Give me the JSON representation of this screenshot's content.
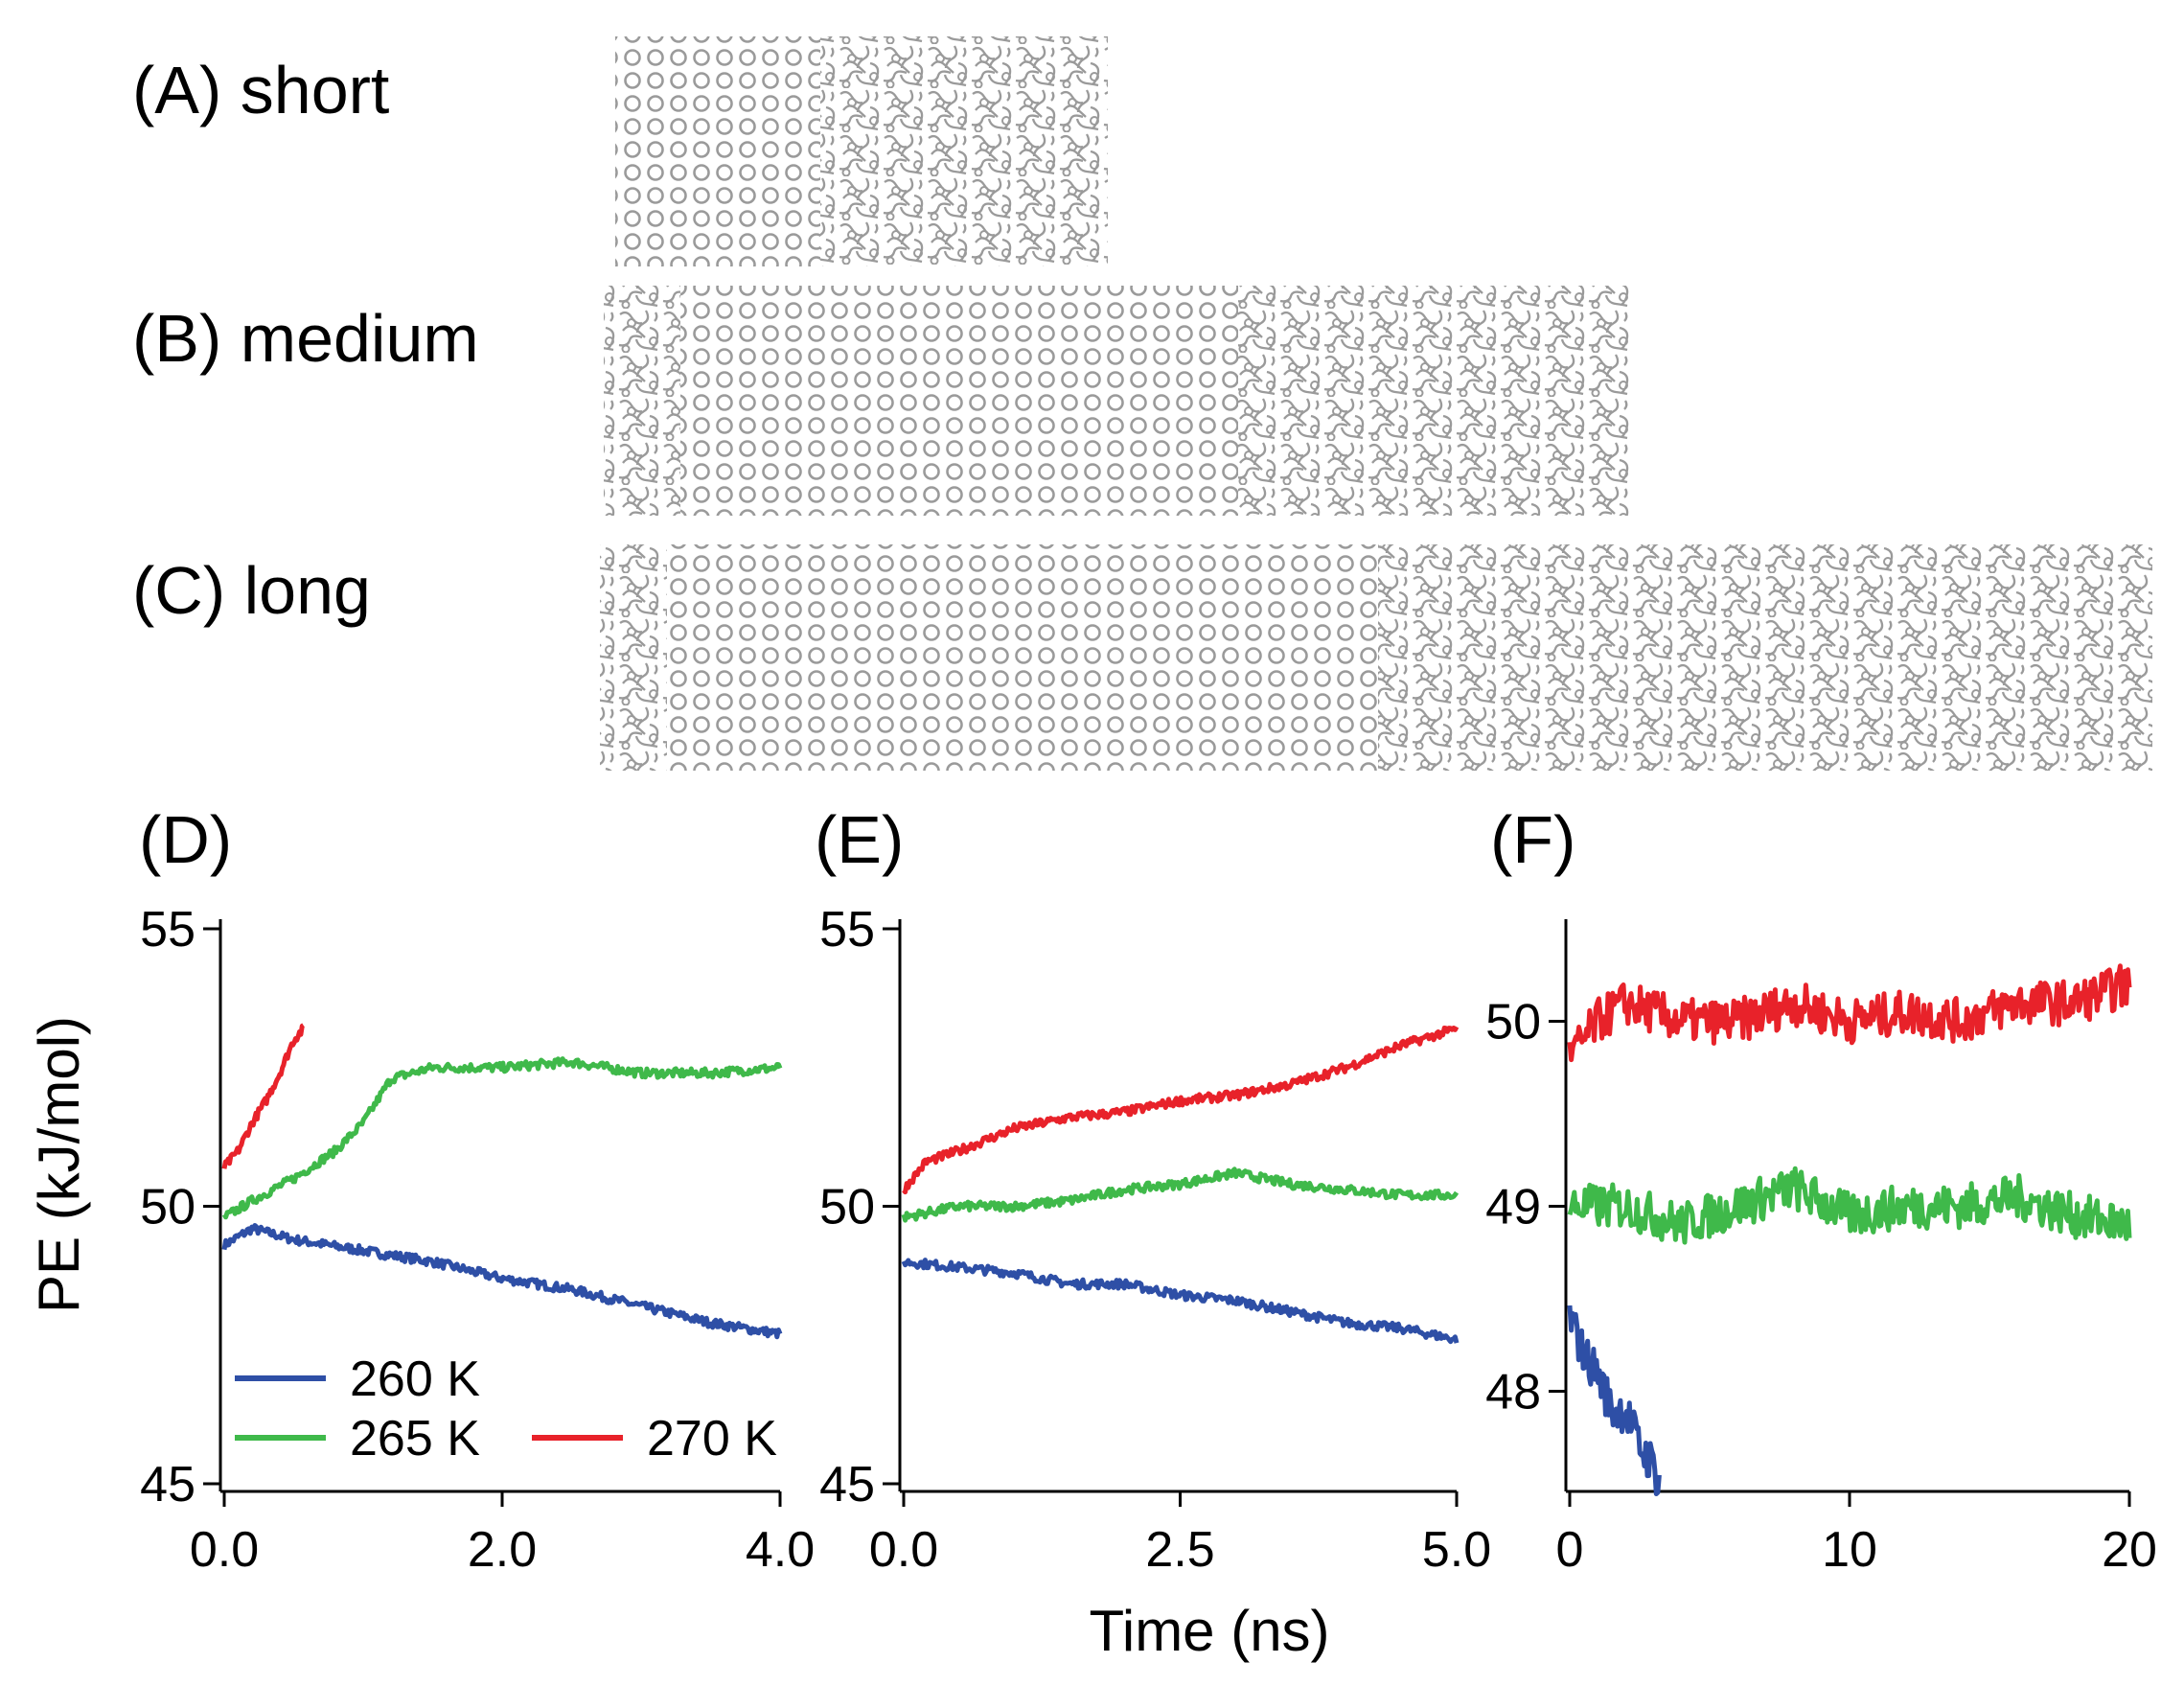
{
  "panels": {
    "A": {
      "label": "(A) short"
    },
    "B": {
      "label": "(B) medium"
    },
    "C": {
      "label": "(C) long"
    },
    "D": {
      "label": "(D)"
    },
    "E": {
      "label": "(E)"
    },
    "F": {
      "label": "(F)"
    }
  },
  "colors": {
    "t260": "#2e4fa6",
    "t265": "#3fb94a",
    "t270": "#e8222a",
    "snapshot": "#9a9a9a"
  },
  "chart_data": [
    {
      "id": "D",
      "type": "line",
      "title": "(D)",
      "xlabel": "",
      "ylabel": "PE (kJ/mol)",
      "xlim": [
        0,
        4.0
      ],
      "ylim": [
        45,
        55
      ],
      "xticks": [
        "0.0",
        "2.0",
        "4.0"
      ],
      "yticks": [
        "45",
        "50",
        "55"
      ],
      "legend": {
        "placement": "bottom-left",
        "entries": [
          "260 K",
          "265 K",
          "270 K"
        ]
      },
      "series": [
        {
          "name": "260 K",
          "x": [
            0.0,
            0.2,
            0.5,
            1.0,
            1.5,
            2.0,
            2.5,
            3.0,
            3.5,
            4.0
          ],
          "values": [
            49.3,
            49.6,
            49.4,
            49.2,
            49.0,
            48.7,
            48.5,
            48.2,
            47.9,
            47.7
          ]
        },
        {
          "name": "265 K",
          "x": [
            0.0,
            0.2,
            0.5,
            0.8,
            1.0,
            1.2,
            1.5,
            2.0,
            2.5,
            3.0,
            3.5,
            4.0
          ],
          "values": [
            49.8,
            50.1,
            50.5,
            51.0,
            51.5,
            52.3,
            52.5,
            52.5,
            52.6,
            52.4,
            52.4,
            52.5
          ]
        },
        {
          "name": "270 K",
          "x": [
            0.0,
            0.1,
            0.2,
            0.3,
            0.4,
            0.5,
            0.57
          ],
          "values": [
            50.7,
            51.0,
            51.5,
            51.9,
            52.4,
            53.0,
            53.2
          ]
        }
      ]
    },
    {
      "id": "E",
      "type": "line",
      "title": "(E)",
      "xlabel": "Time (ns)",
      "ylabel": "",
      "xlim": [
        0,
        5.0
      ],
      "ylim": [
        45,
        55
      ],
      "xticks": [
        "0.0",
        "2.5",
        "5.0"
      ],
      "yticks": [
        "45",
        "50",
        "55"
      ],
      "series": [
        {
          "name": "260 K",
          "x": [
            0.0,
            0.5,
            1.0,
            1.5,
            2.0,
            2.5,
            3.0,
            3.5,
            4.0,
            4.5,
            5.0
          ],
          "values": [
            49.0,
            48.9,
            48.8,
            48.6,
            48.6,
            48.4,
            48.3,
            48.1,
            47.9,
            47.8,
            47.6
          ]
        },
        {
          "name": "265 K",
          "x": [
            0.0,
            0.5,
            1.0,
            1.5,
            2.0,
            2.5,
            3.0,
            3.5,
            4.0,
            4.5,
            5.0
          ],
          "values": [
            49.8,
            50.0,
            50.0,
            50.1,
            50.3,
            50.4,
            50.6,
            50.4,
            50.3,
            50.2,
            50.2
          ]
        },
        {
          "name": "270 K",
          "x": [
            0.0,
            0.2,
            0.5,
            1.0,
            1.5,
            2.0,
            2.5,
            3.0,
            3.5,
            4.0,
            4.5,
            5.0
          ],
          "values": [
            50.3,
            50.8,
            51.0,
            51.4,
            51.6,
            51.7,
            51.9,
            52.0,
            52.2,
            52.5,
            52.9,
            53.2
          ]
        }
      ]
    },
    {
      "id": "F",
      "type": "line",
      "title": "(F)",
      "xlabel": "",
      "ylabel": "",
      "xlim": [
        0,
        20
      ],
      "ylim": [
        47.5,
        50.5
      ],
      "xticks": [
        "0",
        "10",
        "20"
      ],
      "yticks": [
        "48",
        "49",
        "50"
      ],
      "series": [
        {
          "name": "260 K",
          "x": [
            0.0,
            0.5,
            1.0,
            1.5,
            2.0,
            2.5,
            3.0,
            3.2
          ],
          "values": [
            48.4,
            48.2,
            48.1,
            47.9,
            47.9,
            47.7,
            47.6,
            47.5
          ]
        },
        {
          "name": "265 K",
          "x": [
            0,
            2,
            4,
            6,
            8,
            10,
            12,
            14,
            16,
            18,
            20
          ],
          "values": [
            49.0,
            49.0,
            48.9,
            49.0,
            49.1,
            48.95,
            49.0,
            49.0,
            49.05,
            48.95,
            48.9
          ]
        },
        {
          "name": "270 K",
          "x": [
            0,
            1,
            2,
            4,
            6,
            8,
            10,
            12,
            14,
            16,
            18,
            20
          ],
          "values": [
            49.8,
            50.0,
            50.1,
            50.0,
            50.0,
            50.1,
            50.0,
            50.05,
            50.0,
            50.1,
            50.1,
            50.2
          ]
        }
      ]
    }
  ]
}
